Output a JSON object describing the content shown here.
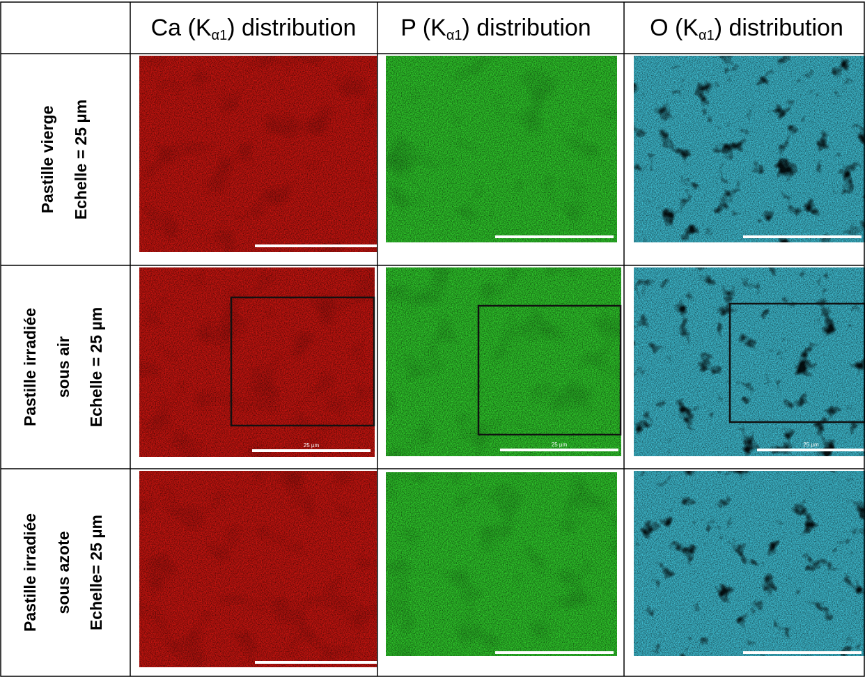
{
  "table": {
    "header": [
      {
        "prefix": "Ca (K",
        "sub": "α1",
        "suffix": ") distribution"
      },
      {
        "prefix": "P (K",
        "sub": "α1",
        "suffix": ") distribution"
      },
      {
        "prefix": "O (K",
        "sub": "α1",
        "suffix": ") distribution"
      }
    ],
    "rows": [
      {
        "label": [
          "Pastille vierge",
          "Echelle = 25 µm"
        ]
      },
      {
        "label": [
          "Pastille irradiée",
          "sous air",
          "Echelle = 25 µm"
        ],
        "scale_labels": [
          "25 µm",
          "25 µm",
          "25 µm"
        ]
      },
      {
        "label": [
          "Pastille irradiée",
          "sous azote",
          "Echelle= 25 µm"
        ]
      }
    ]
  }
}
